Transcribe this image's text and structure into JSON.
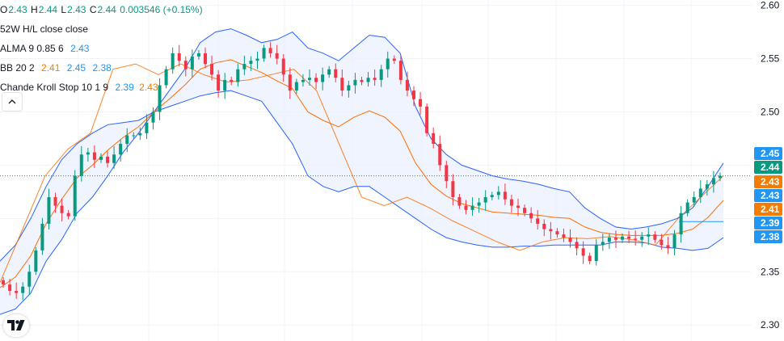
{
  "legend": {
    "ohlc": {
      "o_key": "O",
      "o_val": "2.43",
      "h_key": "H",
      "h_val": "2.44",
      "l_key": "L",
      "l_val": "2.43",
      "c_key": "C",
      "c_val": "2.44",
      "change": "0.003546 (+0.15%)"
    },
    "hl52": "52W H/L close close",
    "alma": {
      "label": "ALMA 9 0.85 6",
      "value": "2.43"
    },
    "bb": {
      "label": "BB 20 2",
      "basis": "2.41",
      "upper": "2.45",
      "lower": "2.38"
    },
    "cks": {
      "label": "Chande Kroll Stop 10 1 9",
      "v1": "2.39",
      "v2": "2.43"
    }
  },
  "colors": {
    "up": "#089981",
    "down": "#f23645",
    "bb_band": "#2962ff",
    "bb_fill": "#e8f0fd",
    "basis": "#ff6d00",
    "alma": "#2196f3",
    "grid": "#f0f3fa",
    "label_green": "#089981",
    "label_blue": "#2196f3",
    "label_orange": "#f57c00",
    "price_line": "#089981"
  },
  "icons": {
    "collapse": "chevron-up-icon",
    "logo": "tradingview-logo-icon"
  },
  "chart_data": {
    "type": "candlestick",
    "ylim": [
      2.285,
      2.605
    ],
    "y_ticks": [
      "2.60",
      "2.55",
      "2.50",
      "2.35",
      "2.30"
    ],
    "last_price": 2.44,
    "price_labels": [
      {
        "text": "2.45",
        "value": 2.45,
        "color": "blue"
      },
      {
        "text": "2.44",
        "value": 2.44,
        "color": "green"
      },
      {
        "text": "2.43",
        "value": 2.43,
        "color": "orange"
      },
      {
        "text": "2.43",
        "value": 2.425,
        "color": "blue"
      },
      {
        "text": "2.41",
        "value": 2.41,
        "color": "orange"
      },
      {
        "text": "2.39",
        "value": 2.397,
        "color": "blue"
      },
      {
        "text": "2.38",
        "value": 2.383,
        "color": "blue"
      }
    ],
    "close_series": [
      2.338,
      2.332,
      2.33,
      2.336,
      2.35,
      2.37,
      2.395,
      2.42,
      2.412,
      2.405,
      2.402,
      2.44,
      2.46,
      2.462,
      2.455,
      2.458,
      2.452,
      2.46,
      2.47,
      2.478,
      2.478,
      2.48,
      2.49,
      2.5,
      2.525,
      2.54,
      2.555,
      2.548,
      2.54,
      2.552,
      2.555,
      2.545,
      2.535,
      2.52,
      2.53,
      2.528,
      2.54,
      2.545,
      2.548,
      2.55,
      2.56,
      2.555,
      2.55,
      2.535,
      2.52,
      2.528,
      2.53,
      2.532,
      2.528,
      2.535,
      2.54,
      2.532,
      2.52,
      2.525,
      2.53,
      2.528,
      2.532,
      2.53,
      2.54,
      2.55,
      2.548,
      2.53,
      2.52,
      2.512,
      2.505,
      2.48,
      2.47,
      2.45,
      2.435,
      2.42,
      2.412,
      2.408,
      2.412,
      2.415,
      2.42,
      2.422,
      2.425,
      2.418,
      2.412,
      2.41,
      2.405,
      2.4,
      2.395,
      2.39,
      2.388,
      2.385,
      2.382,
      2.378,
      2.372,
      2.365,
      2.36,
      2.375,
      2.378,
      2.382,
      2.38,
      2.383,
      2.381,
      2.38,
      2.383,
      2.385,
      2.38,
      2.375,
      2.372,
      2.385,
      2.405,
      2.415,
      2.42,
      2.428,
      2.432,
      2.438,
      2.44
    ],
    "bb_upper": [
      2.36,
      2.375,
      2.4,
      2.43,
      2.455,
      2.47,
      2.48,
      2.488,
      2.49,
      2.492,
      2.5,
      2.52,
      2.54,
      2.565,
      2.575,
      2.578,
      2.572,
      2.565,
      2.568,
      2.575,
      2.56,
      2.555,
      2.548,
      2.56,
      2.572,
      2.57,
      2.555,
      2.505,
      2.475,
      2.46,
      2.45,
      2.445,
      2.44,
      2.437,
      2.435,
      2.432,
      2.428,
      2.425,
      2.41,
      2.4,
      2.392,
      2.39,
      2.392,
      2.395,
      2.4,
      2.41,
      2.43,
      2.452
    ],
    "bb_lower": [
      2.31,
      2.315,
      2.33,
      2.36,
      2.38,
      2.405,
      2.42,
      2.44,
      2.462,
      2.48,
      2.5,
      2.505,
      2.51,
      2.515,
      2.518,
      2.52,
      2.515,
      2.51,
      2.49,
      2.47,
      2.44,
      2.43,
      2.425,
      2.43,
      2.43,
      2.42,
      2.41,
      2.4,
      2.39,
      2.382,
      2.378,
      2.375,
      2.373,
      2.373,
      2.374,
      2.374,
      2.375,
      2.375,
      2.375,
      2.375,
      2.378,
      2.378,
      2.377,
      2.373,
      2.372,
      2.37,
      2.372,
      2.382
    ],
    "bb_basis": [
      2.335,
      2.345,
      2.365,
      2.395,
      2.418,
      2.438,
      2.45,
      2.464,
      2.476,
      2.486,
      2.5,
      2.512,
      2.525,
      2.54,
      2.546,
      2.549,
      2.543,
      2.537,
      2.529,
      2.522,
      2.5,
      2.492,
      2.486,
      2.495,
      2.501,
      2.495,
      2.482,
      2.452,
      2.432,
      2.421,
      2.414,
      2.41,
      2.406,
      2.405,
      2.404,
      2.403,
      2.401,
      2.4,
      2.392,
      2.387,
      2.385,
      2.384,
      2.384,
      2.384,
      2.386,
      2.39,
      2.401,
      2.417
    ],
    "alma": [
      2.34,
      2.39,
      2.44,
      2.465,
      2.48,
      2.54,
      2.545,
      2.535,
      2.545,
      2.535,
      2.528,
      2.53,
      2.535,
      2.54,
      2.52,
      2.47,
      2.42,
      2.412,
      2.42,
      2.41,
      2.398,
      2.388,
      2.378,
      2.37,
      2.378,
      2.382,
      2.381,
      2.383,
      2.38,
      2.375,
      2.4,
      2.42,
      2.44
    ],
    "cks_stop": [
      2.397,
      2.397,
      2.397
    ],
    "cks_x_from": 2.4,
    "axis_price_line": 2.44
  }
}
